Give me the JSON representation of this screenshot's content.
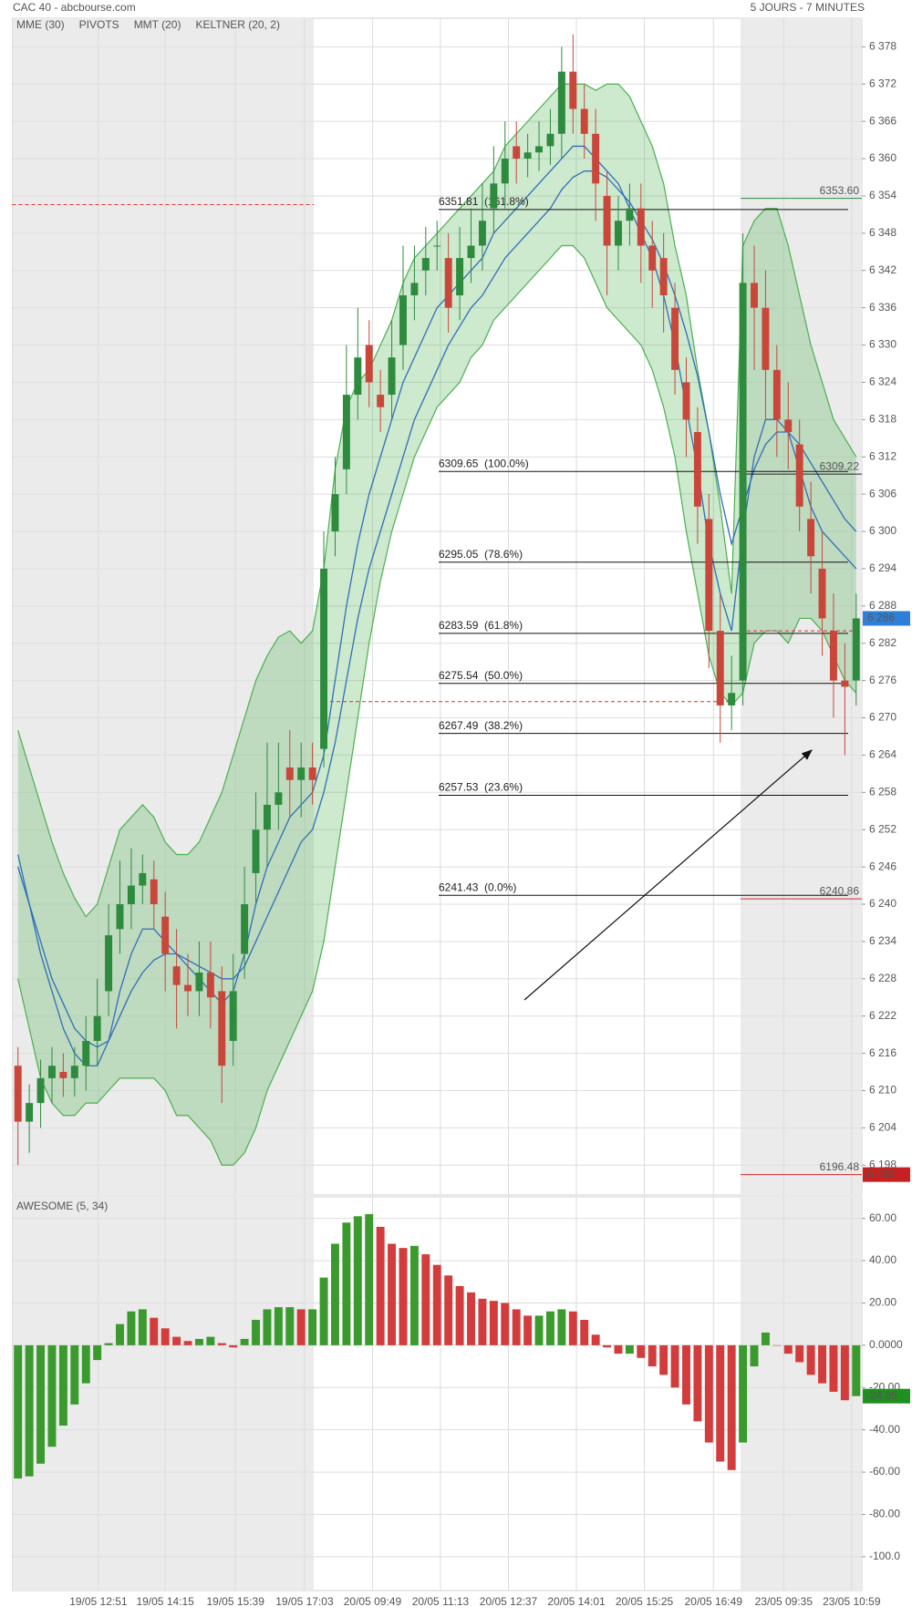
{
  "chart_data": [
    {
      "type": "candlestick",
      "title": "CAC 40 - abcbourse.com",
      "subtitle": "5 JOURS - 7 MINUTES",
      "xlim": [
        -0.5,
        74.5
      ],
      "xticks": [
        {
          "value": 7.1,
          "label": "19/05 12:51"
        },
        {
          "value": 13.0,
          "label": "19/05 14:15"
        },
        {
          "value": 19.2,
          "label": "19/05 15:39"
        },
        {
          "value": 25.3,
          "label": "19/05 17:03"
        },
        {
          "value": 31.3,
          "label": "20/05 09:49"
        },
        {
          "value": 37.3,
          "label": "20/05 11:13"
        },
        {
          "value": 43.3,
          "label": "20/05 12:37"
        },
        {
          "value": 49.3,
          "label": "20/05 14:01"
        },
        {
          "value": 55.3,
          "label": "20/05 15:25"
        },
        {
          "value": 61.4,
          "label": "20/05 16:49"
        },
        {
          "value": 67.6,
          "label": "23/05 09:35"
        },
        {
          "value": 73.6,
          "label": "23/05 10:59"
        }
      ],
      "ylim": [
        6193.2,
        6382.6
      ],
      "yticks": [
        {
          "value": 6198,
          "label": "6 198"
        },
        {
          "value": 6204,
          "label": "6 204"
        },
        {
          "value": 6210,
          "label": "6 210"
        },
        {
          "value": 6216,
          "label": "6 216"
        },
        {
          "value": 6222,
          "label": "6 222"
        },
        {
          "value": 6228,
          "label": "6 228"
        },
        {
          "value": 6234,
          "label": "6 234"
        },
        {
          "value": 6240,
          "label": "6 240"
        },
        {
          "value": 6246,
          "label": "6 246"
        },
        {
          "value": 6252,
          "label": "6 252"
        },
        {
          "value": 6258,
          "label": "6 258"
        },
        {
          "value": 6264,
          "label": "6 264"
        },
        {
          "value": 6270,
          "label": "6 270"
        },
        {
          "value": 6276,
          "label": "6 276"
        },
        {
          "value": 6282,
          "label": "6 282"
        },
        {
          "value": 6288,
          "label": "6 288"
        },
        {
          "value": 6294,
          "label": "6 294"
        },
        {
          "value": 6300,
          "label": "6 300"
        },
        {
          "value": 6306,
          "label": "6 306"
        },
        {
          "value": 6312,
          "label": "6 312"
        },
        {
          "value": 6318,
          "label": "6 318"
        },
        {
          "value": 6324,
          "label": "6 324"
        },
        {
          "value": 6330,
          "label": "6 330"
        },
        {
          "value": 6336,
          "label": "6 336"
        },
        {
          "value": 6342,
          "label": "6 342"
        },
        {
          "value": 6348,
          "label": "6 348"
        },
        {
          "value": 6354,
          "label": "6 354"
        },
        {
          "value": 6360,
          "label": "6 360"
        },
        {
          "value": 6366,
          "label": "6 366"
        },
        {
          "value": 6372,
          "label": "6 372"
        },
        {
          "value": 6378,
          "label": "6 378"
        }
      ],
      "grid": true,
      "up_color": "#2e8b3e",
      "down_color": "#c9473a",
      "open": [
        6214,
        6205,
        6208,
        6212,
        6213,
        6212,
        6214,
        6218,
        6226,
        6236,
        6240,
        6243,
        6244,
        6238,
        6230,
        6227,
        6226,
        6229,
        6226,
        6218,
        6232,
        6245,
        6252,
        6256,
        6262,
        6260,
        6262,
        6265,
        6300,
        6310,
        6322,
        6330,
        6322,
        6322,
        6330,
        6338,
        6342,
        6346,
        6344,
        6338,
        6344,
        6346,
        6352,
        6356,
        6362,
        6360,
        6361,
        6362,
        6364,
        6374,
        6368,
        6364,
        6354,
        6346,
        6350,
        6352,
        6346,
        6344,
        6336,
        6324,
        6316,
        6302,
        6284,
        6272,
        6276,
        6340,
        6336,
        6326,
        6318,
        6314,
        6302,
        6294,
        6284,
        6276,
        6276
      ],
      "high": [
        6217,
        6211,
        6215,
        6217,
        6216,
        6217,
        6222,
        6228,
        6240,
        6247,
        6249,
        6248,
        6247,
        6242,
        6236,
        6232,
        6234,
        6234,
        6230,
        6232,
        6246,
        6258,
        6266,
        6266,
        6268,
        6266,
        6266,
        6300,
        6312,
        6330,
        6336,
        6334,
        6326,
        6334,
        6346,
        6346,
        6349,
        6350,
        6348,
        6349,
        6352,
        6356,
        6362,
        6366,
        6366,
        6364,
        6366,
        6368,
        6378,
        6380,
        6372,
        6368,
        6358,
        6354,
        6356,
        6356,
        6350,
        6348,
        6340,
        6328,
        6320,
        6306,
        6290,
        6280,
        6348,
        6346,
        6342,
        6330,
        6324,
        6318,
        6308,
        6300,
        6290,
        6282,
        6290
      ],
      "low": [
        6198,
        6200,
        6204,
        6208,
        6209,
        6209,
        6210,
        6214,
        6222,
        6232,
        6236,
        6240,
        6236,
        6226,
        6220,
        6222,
        6222,
        6220,
        6208,
        6214,
        6228,
        6240,
        6246,
        6252,
        6254,
        6254,
        6256,
        6262,
        6296,
        6306,
        6318,
        6320,
        6316,
        6318,
        6326,
        6334,
        6338,
        6342,
        6332,
        6334,
        6340,
        6342,
        6348,
        6352,
        6356,
        6357,
        6358,
        6359,
        6360,
        6364,
        6360,
        6350,
        6338,
        6342,
        6346,
        6340,
        6336,
        6332,
        6322,
        6312,
        6298,
        6278,
        6266,
        6268,
        6272,
        6326,
        6318,
        6312,
        6310,
        6300,
        6290,
        6280,
        6270,
        6264,
        6272
      ],
      "close": [
        6205,
        6208,
        6212,
        6214,
        6212,
        6214,
        6218,
        6222,
        6235,
        6240,
        6243,
        6245,
        6240,
        6232,
        6227,
        6226,
        6229,
        6225,
        6214,
        6226,
        6240,
        6252,
        6256,
        6258,
        6260,
        6262,
        6260,
        6294,
        6306,
        6322,
        6328,
        6324,
        6320,
        6328,
        6338,
        6340,
        6344,
        6346,
        6336,
        6344,
        6346,
        6350,
        6356,
        6360,
        6360,
        6361,
        6362,
        6364,
        6374,
        6368,
        6364,
        6356,
        6346,
        6350,
        6352,
        6346,
        6342,
        6338,
        6326,
        6318,
        6304,
        6284,
        6272,
        6274,
        6340,
        6336,
        6326,
        6318,
        6316,
        6304,
        6296,
        6286,
        6276,
        6275,
        6286
      ],
      "series": [
        {
          "name": "MME (30)",
          "color": "#2f6fb6",
          "legend_color": "#2f6fb6",
          "values": [
            6246,
            6240,
            6234,
            6228,
            6224,
            6220,
            6218,
            6217,
            6218,
            6222,
            6226,
            6229,
            6231,
            6232,
            6232,
            6231,
            6230,
            6229,
            6228,
            6228,
            6230,
            6234,
            6238,
            6242,
            6246,
            6250,
            6252,
            6258,
            6266,
            6276,
            6286,
            6294,
            6300,
            6306,
            6312,
            6318,
            6322,
            6326,
            6330,
            6333,
            6336,
            6338,
            6341,
            6344,
            6346,
            6348,
            6350,
            6352,
            6355,
            6357,
            6358,
            6358,
            6357,
            6355,
            6353,
            6350,
            6347,
            6343,
            6338,
            6332,
            6325,
            6316,
            6306,
            6298,
            6304,
            6310,
            6314,
            6316,
            6316,
            6314,
            6311,
            6308,
            6305,
            6302,
            6300
          ]
        },
        {
          "name": "PIVOTS",
          "color": "#e03131",
          "legend_color": "#555555",
          "values": [
            6352.6,
            6272.6,
            6284
          ]
        },
        {
          "name": "MMT (20)",
          "color": "#2f6fb6",
          "legend_color": "#2f6fb6",
          "values": [
            6248,
            6240,
            6232,
            6226,
            6220,
            6216,
            6214,
            6214,
            6218,
            6226,
            6232,
            6236,
            6236,
            6234,
            6232,
            6230,
            6228,
            6226,
            6224,
            6226,
            6232,
            6240,
            6246,
            6250,
            6254,
            6256,
            6258,
            6264,
            6276,
            6288,
            6298,
            6306,
            6312,
            6318,
            6324,
            6328,
            6332,
            6336,
            6338,
            6340,
            6342,
            6344,
            6348,
            6350,
            6352,
            6354,
            6356,
            6358,
            6360,
            6362,
            6362,
            6360,
            6358,
            6356,
            6352,
            6348,
            6344,
            6338,
            6330,
            6320,
            6310,
            6298,
            6290,
            6284,
            6300,
            6312,
            6318,
            6318,
            6316,
            6310,
            6304,
            6300,
            6298,
            6296,
            6294
          ]
        },
        {
          "name": "KELTNER (20, 2)",
          "color": "#4caf50",
          "legend_color": "#4caf50",
          "upper": [
            6268,
            6262,
            6256,
            6250,
            6245,
            6241,
            6238,
            6240,
            6246,
            6252,
            6254,
            6256,
            6254,
            6250,
            6248,
            6248,
            6250,
            6254,
            6258,
            6264,
            6270,
            6276,
            6280,
            6283,
            6284,
            6282,
            6284,
            6294,
            6310,
            6320,
            6324,
            6326,
            6330,
            6334,
            6340,
            6344,
            6346,
            6348,
            6350,
            6352,
            6354,
            6356,
            6358,
            6362,
            6364,
            6366,
            6368,
            6370,
            6372,
            6372,
            6372,
            6371,
            6372,
            6372,
            6370,
            6366,
            6362,
            6356,
            6346,
            6338,
            6326,
            6316,
            6304,
            6290,
            6346,
            6350,
            6352,
            6352,
            6346,
            6338,
            6330,
            6324,
            6318,
            6315,
            6312
          ],
          "lower": [
            6228,
            6220,
            6212,
            6208,
            6206,
            6206,
            6208,
            6208,
            6210,
            6212,
            6212,
            6212,
            6212,
            6210,
            6206,
            6206,
            6204,
            6202,
            6198,
            6198,
            6200,
            6204,
            6210,
            6214,
            6218,
            6222,
            6226,
            6234,
            6246,
            6258,
            6270,
            6282,
            6292,
            6300,
            6306,
            6312,
            6316,
            6320,
            6322,
            6324,
            6328,
            6330,
            6334,
            6336,
            6338,
            6340,
            6342,
            6344,
            6346,
            6346,
            6344,
            6340,
            6336,
            6334,
            6332,
            6330,
            6326,
            6320,
            6312,
            6300,
            6290,
            6280,
            6274,
            6272,
            6274,
            6282,
            6284,
            6284,
            6282,
            6286,
            6286,
            6284,
            6280,
            6276,
            6274
          ]
        }
      ],
      "fib_levels": [
        {
          "value": 6351.81,
          "label": "6351.81  (161.8%)"
        },
        {
          "value": 6309.65,
          "label": "6309.65  (100.0%)"
        },
        {
          "value": 6295.05,
          "label": "6295.05  (78.6%)"
        },
        {
          "value": 6283.59,
          "label": "6283.59  (61.8%)"
        },
        {
          "value": 6275.54,
          "label": "6275.54  (50.0%)"
        },
        {
          "value": 6267.49,
          "label": "6267.49  (38.2%)"
        },
        {
          "value": 6257.53,
          "label": "6257.53  (23.6%)"
        },
        {
          "value": 6241.43,
          "label": "6241.43  (0.0%)"
        }
      ],
      "right_levels": [
        {
          "value": 6353.6,
          "label": "6353.60",
          "color": "#2e8b3e"
        },
        {
          "value": 6309.22,
          "label": "6309.22",
          "color": "#222222"
        },
        {
          "value": 6240.86,
          "label": "6240.86",
          "color": "#d62728"
        },
        {
          "value": 6196.48,
          "label": "6196.48",
          "color": "#d62728"
        }
      ],
      "badges": [
        {
          "value": 6286,
          "label": "6 286",
          "color": "#2f7fd8"
        },
        {
          "value": 6196.48,
          "label": "6 196",
          "color": "#c62020"
        }
      ]
    },
    {
      "type": "bar",
      "title": "AWESOME (5, 34)",
      "xlim": [
        -0.5,
        74.5
      ],
      "ylim": [
        -116,
        70.2
      ],
      "yticks": [
        {
          "value": 60,
          "label": "60.00"
        },
        {
          "value": 40,
          "label": "40.00"
        },
        {
          "value": 20,
          "label": "20.00"
        },
        {
          "value": 0,
          "label": "0.0000"
        },
        {
          "value": -20,
          "label": "-20.00"
        },
        {
          "value": -40,
          "label": "-40.00"
        },
        {
          "value": -60,
          "label": "-60.00"
        },
        {
          "value": -80,
          "label": "-80.00"
        },
        {
          "value": -100,
          "label": "-100.0"
        }
      ],
      "grid": true,
      "up_color": "#3a9a2e",
      "down_color": "#d23c3c",
      "badge_color": "#1f8f1f",
      "values": [
        -63,
        -62,
        -56,
        -48,
        -38,
        -28,
        -18,
        -7,
        1,
        10,
        16,
        17,
        13,
        8,
        4,
        2,
        3,
        4,
        1,
        -1,
        3,
        12,
        17,
        18,
        18,
        17,
        17,
        32,
        48,
        58,
        61,
        62,
        56,
        48,
        46,
        47,
        43,
        38,
        33,
        28,
        25,
        22,
        21,
        20,
        17,
        14,
        14,
        16,
        17,
        16,
        12,
        5,
        -1,
        -4,
        -4,
        -6,
        -10,
        -14,
        -20,
        -28,
        -36,
        -46,
        -55,
        -59,
        -46,
        -10,
        6,
        0,
        -4,
        -8,
        -14,
        -18,
        -22,
        -26,
        -24.05
      ]
    }
  ]
}
